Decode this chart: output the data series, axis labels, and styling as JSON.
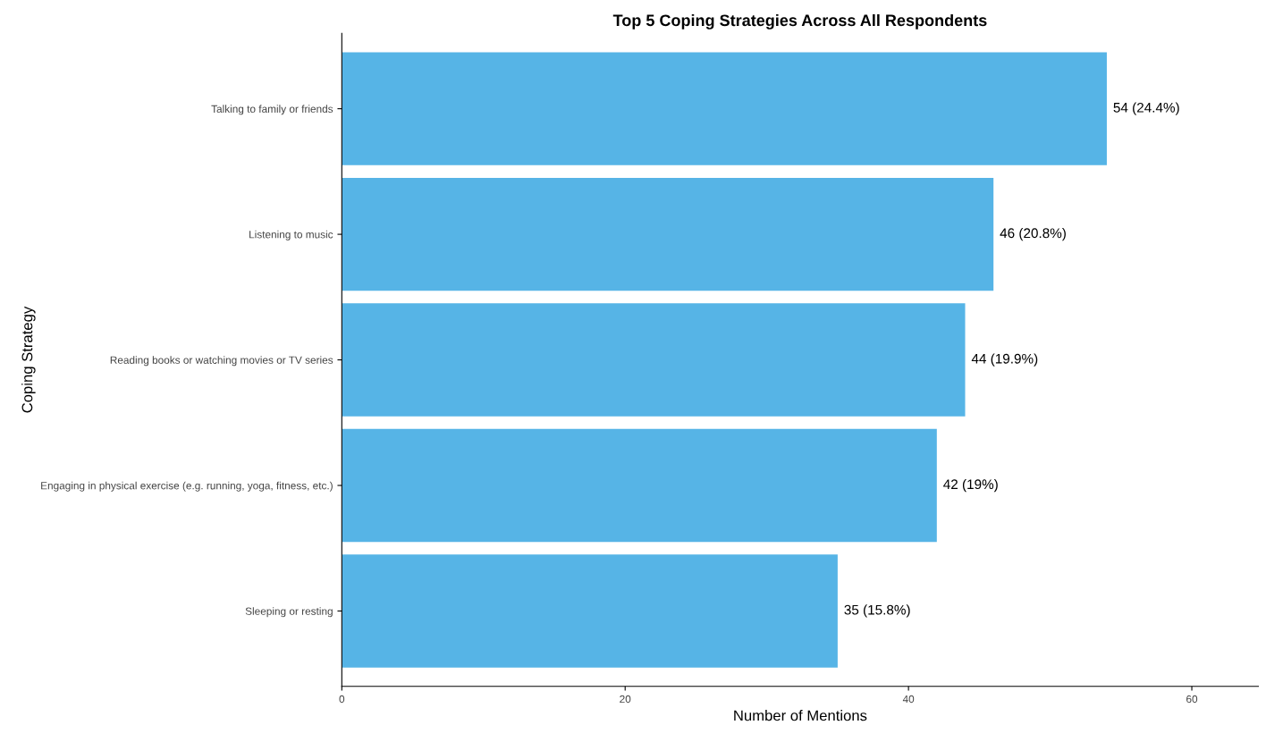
{
  "chart_data": {
    "type": "bar",
    "orientation": "horizontal",
    "title": "Top 5 Coping Strategies Across All Respondents",
    "xlabel": "Number of Mentions",
    "ylabel": "Coping Strategy",
    "categories": [
      "Talking to family or friends",
      "Listening to music",
      "Reading books or watching movies or TV series",
      "Engaging in physical exercise (e.g. running, yoga, fitness, etc.)",
      "Sleeping or resting"
    ],
    "values": [
      54,
      46,
      44,
      42,
      35
    ],
    "value_labels": [
      "54 (24.4%)",
      "46 (20.8%)",
      "44 (19.9%)",
      "42 (19%)",
      "35 (15.8%)"
    ],
    "color": "#56b4e6",
    "xlim": [
      0,
      64.7
    ],
    "xticks": [
      0,
      20,
      40,
      60
    ],
    "grid": false,
    "legend": false
  }
}
